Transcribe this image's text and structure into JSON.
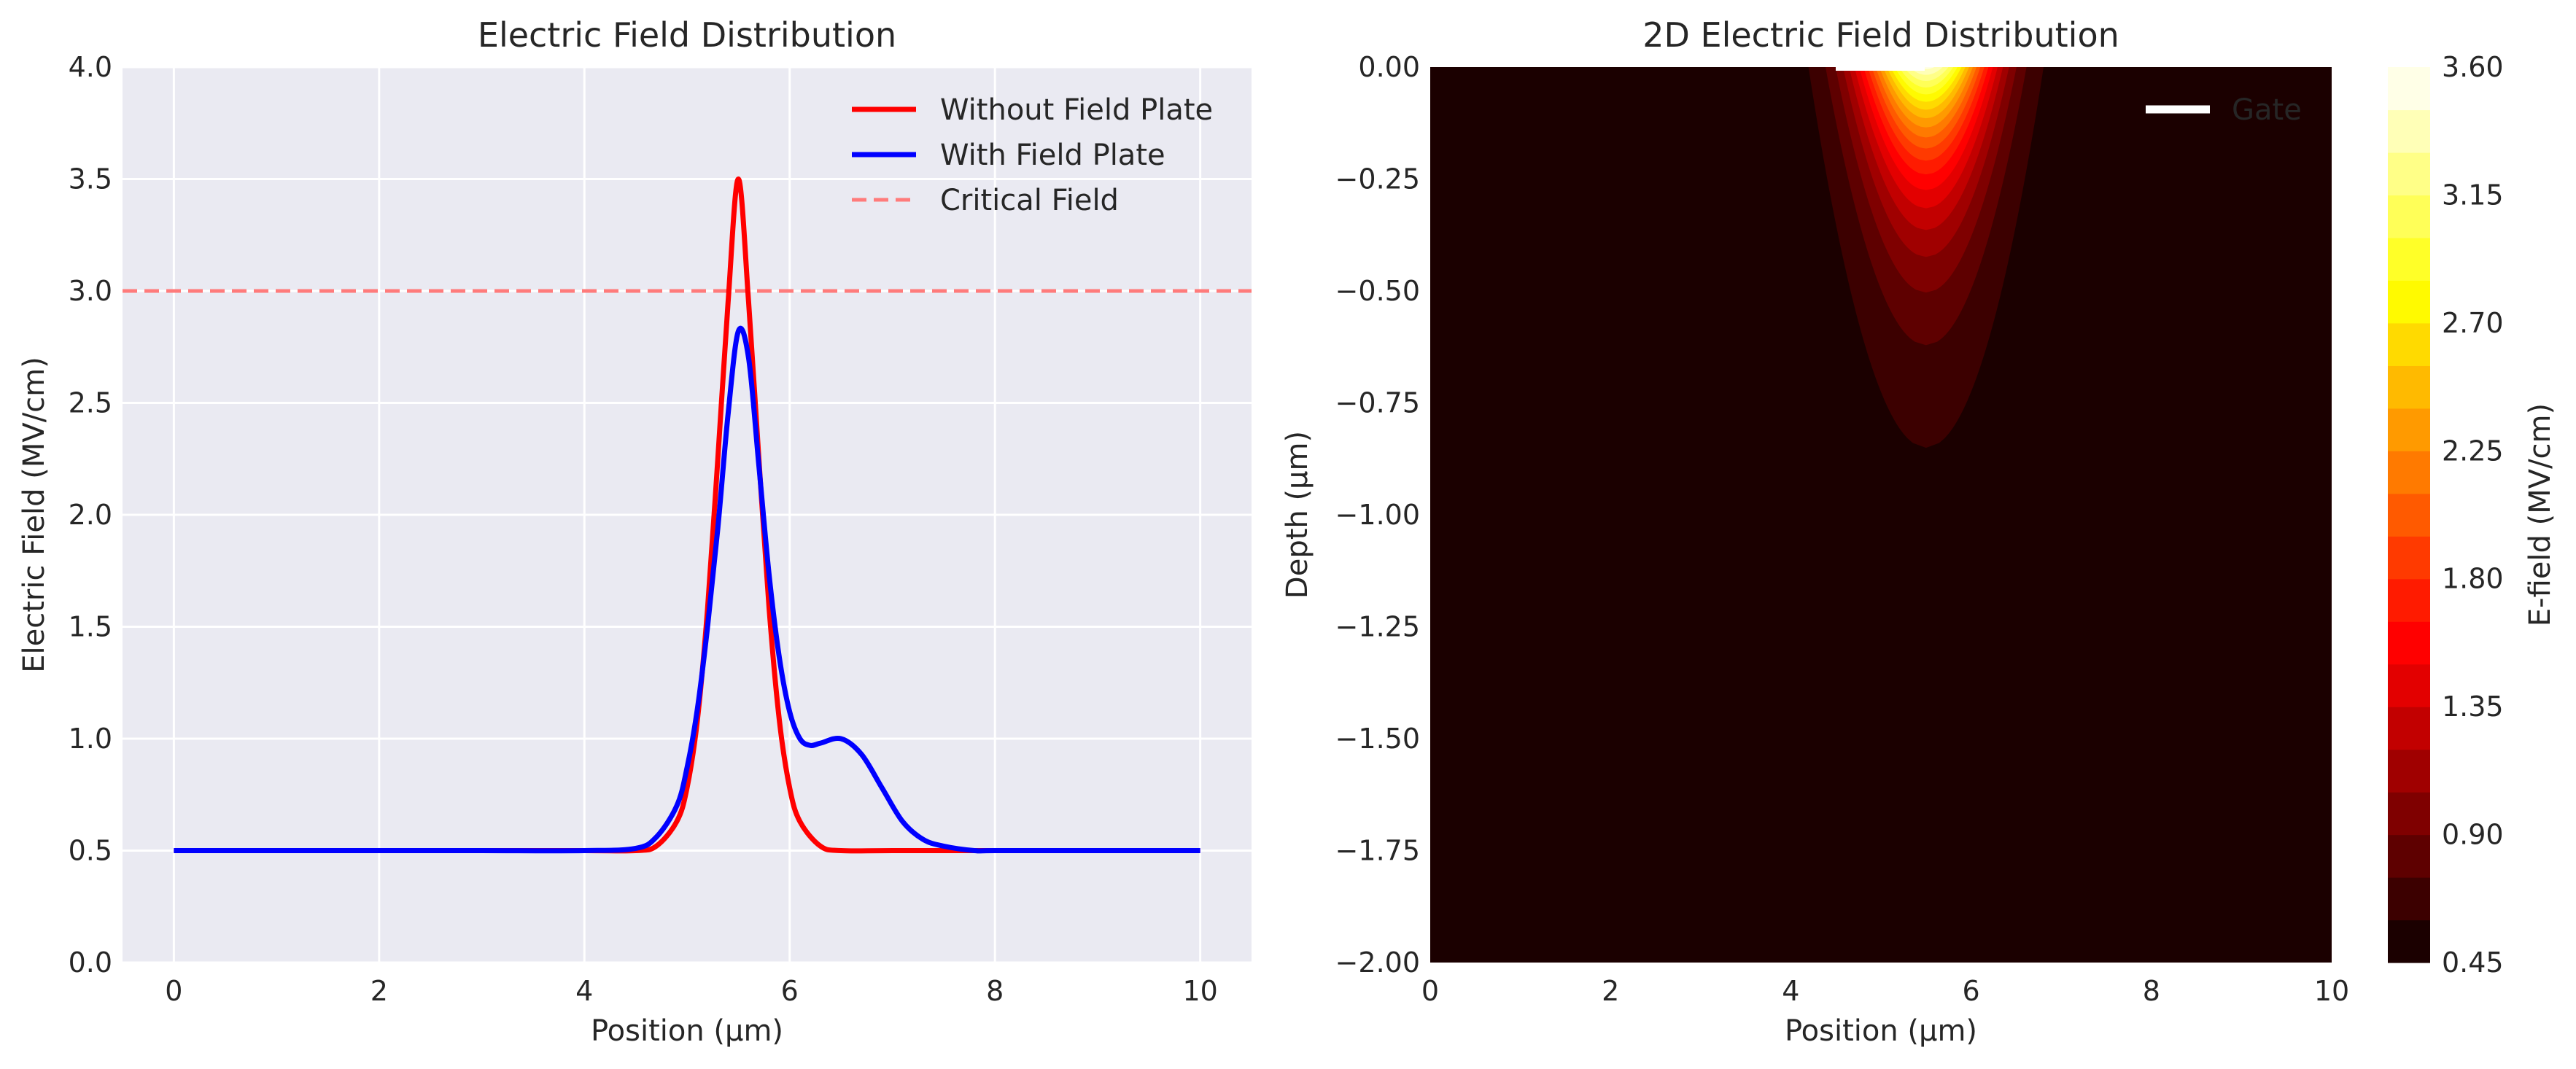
{
  "chart_data": [
    {
      "type": "line",
      "title": "Electric Field Distribution",
      "xlabel": "Position (µm)",
      "ylabel": "Electric Field (MV/cm)",
      "xlim": [
        -0.5,
        10.5
      ],
      "ylim": [
        0,
        4
      ],
      "xticks": [
        0,
        2,
        4,
        6,
        8,
        10
      ],
      "xtick_labels": [
        "0",
        "2",
        "4",
        "6",
        "8",
        "10"
      ],
      "yticks": [
        0,
        0.5,
        1,
        1.5,
        2,
        2.5,
        3,
        3.5,
        4
      ],
      "ytick_labels": [
        "0.0",
        "0.5",
        "1.0",
        "1.5",
        "2.0",
        "2.5",
        "3.0",
        "3.5",
        "4.0"
      ],
      "grid": true,
      "legend_position": "top-right",
      "series": [
        {
          "name": "Without Field Plate",
          "color": "#ff0000",
          "style": "solid",
          "x": [
            0,
            1,
            2,
            3,
            4,
            4.5,
            4.7,
            4.9,
            5.0,
            5.1,
            5.2,
            5.3,
            5.4,
            5.5,
            5.6,
            5.7,
            5.8,
            5.9,
            6.0,
            6.1,
            6.3,
            6.5,
            7,
            8,
            9,
            10
          ],
          "y": [
            0.5,
            0.5,
            0.5,
            0.5,
            0.5,
            0.5,
            0.52,
            0.63,
            0.78,
            1.08,
            1.58,
            2.25,
            2.95,
            3.5,
            2.95,
            2.25,
            1.58,
            1.08,
            0.78,
            0.63,
            0.52,
            0.5,
            0.5,
            0.5,
            0.5,
            0.5
          ]
        },
        {
          "name": "With Field Plate",
          "color": "#0000ff",
          "style": "solid",
          "x": [
            0,
            1,
            2,
            3,
            4,
            4.5,
            4.7,
            4.9,
            5.0,
            5.1,
            5.2,
            5.3,
            5.4,
            5.5,
            5.6,
            5.7,
            5.8,
            5.9,
            6.0,
            6.1,
            6.2,
            6.3,
            6.5,
            6.7,
            6.9,
            7.1,
            7.3,
            7.5,
            7.8,
            8,
            9,
            10
          ],
          "y": [
            0.5,
            0.5,
            0.5,
            0.5,
            0.5,
            0.51,
            0.56,
            0.7,
            0.87,
            1.13,
            1.5,
            1.94,
            2.45,
            2.82,
            2.7,
            2.22,
            1.73,
            1.36,
            1.12,
            1.0,
            0.97,
            0.98,
            1.0,
            0.93,
            0.78,
            0.63,
            0.55,
            0.52,
            0.5,
            0.5,
            0.5,
            0.5
          ]
        },
        {
          "name": "Critical Field",
          "color": "#ff7b7b",
          "style": "dashed",
          "x": [
            -0.5,
            10.5
          ],
          "y": [
            3.0,
            3.0
          ]
        }
      ]
    },
    {
      "type": "heatmap",
      "title": "2D Electric Field Distribution",
      "xlabel": "Position (µm)",
      "ylabel": "Depth (µm)",
      "xlim": [
        0,
        10
      ],
      "ylim": [
        -2,
        0
      ],
      "xticks": [
        0,
        2,
        4,
        6,
        8,
        10
      ],
      "xtick_labels": [
        "0",
        "2",
        "4",
        "6",
        "8",
        "10"
      ],
      "yticks": [
        0,
        -0.25,
        -0.5,
        -0.75,
        -1,
        -1.25,
        -1.5,
        -1.75,
        -2
      ],
      "ytick_labels": [
        "0.00",
        "−0.25",
        "−0.50",
        "−0.75",
        "−1.00",
        "−1.25",
        "−1.50",
        "−1.75",
        "−2.00"
      ],
      "field": {
        "background": 0.5,
        "peak": 3.5,
        "peak_x": 5.5,
        "sigma_x": 0.5,
        "decay_depth": 0.25
      },
      "colorbar": {
        "label": "E-field (MV/cm)",
        "min": 0.45,
        "max": 3.6,
        "levels": 21,
        "ticks": [
          0.45,
          0.9,
          1.35,
          1.8,
          2.25,
          2.7,
          3.15,
          3.6
        ],
        "tick_labels": [
          "0.45",
          "0.90",
          "1.35",
          "1.80",
          "2.25",
          "2.70",
          "3.15",
          "3.60"
        ]
      },
      "legend_position": "top-right",
      "series": [
        {
          "name": "Gate",
          "color": "#ffffff",
          "x": [
            4.5,
            6.5
          ],
          "y": [
            0,
            0
          ]
        }
      ]
    }
  ]
}
